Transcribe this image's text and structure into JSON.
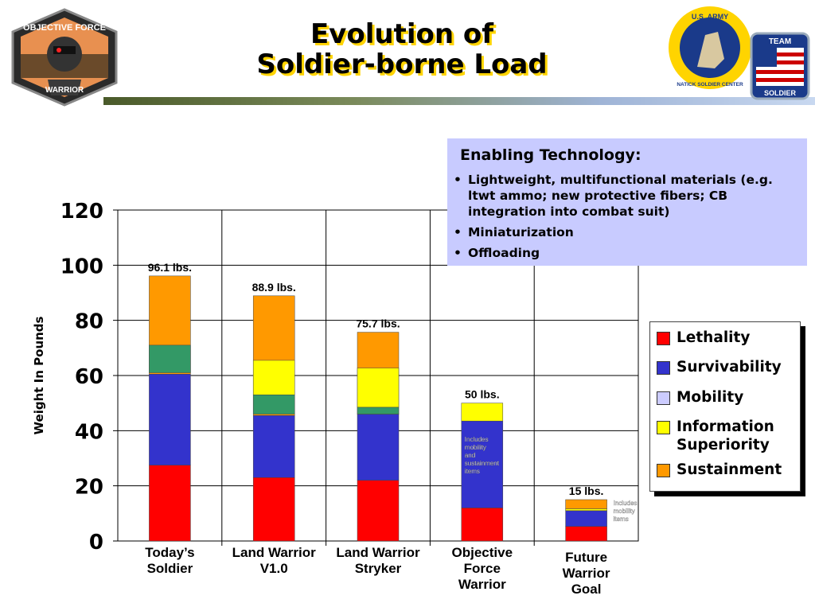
{
  "header": {
    "title_line1": "Evolution of",
    "title_line2": "Soldier-borne Load",
    "logo_left_text": [
      "OBJECTIVE FORCE",
      "WARRIOR"
    ],
    "logo_right1_text": [
      "U.S. ARMY",
      "NATICK SOLDIER CENTER"
    ],
    "logo_right2_text": [
      "TEAM",
      "SOLDIER"
    ]
  },
  "enabling_technology": {
    "heading": "Enabling Technology:",
    "items": [
      "Lightweight, multifunctional materials (e.g. ltwt ammo; new protective fibers; CB integration into combat suit)",
      "Miniaturization",
      "Offloading"
    ]
  },
  "colors": {
    "lethality": "#ff0000",
    "survivability": "#3333cc",
    "mobility": "#ccccff",
    "information_superiority": "#ffff00",
    "sustainment": "#ff9900",
    "tech_box": "#c8cbff",
    "header_gradient_start": "#4a5a2a",
    "header_gradient_end": "#c8d8f0"
  },
  "chart_data": {
    "type": "bar",
    "stacked": true,
    "ylabel": "Weight In Pounds",
    "xlabel": "",
    "ylim": [
      0,
      120
    ],
    "yticks": [
      0,
      20,
      40,
      60,
      80,
      100,
      120
    ],
    "grid": true,
    "legend_position": "right",
    "categories": [
      [
        "Today’s",
        "Soldier"
      ],
      [
        "Land Warrior",
        "V1.0"
      ],
      [
        "Land Warrior",
        "Stryker"
      ],
      [
        "Objective",
        "Force",
        "Warrior"
      ],
      [
        "Future",
        "Warrior",
        "Goal"
      ]
    ],
    "totals": [
      "96.1 lbs.",
      "88.9 lbs.",
      "75.7 lbs.",
      "50 lbs.",
      "15 lbs."
    ],
    "total_values": [
      96.1,
      88.9,
      75.7,
      50,
      15
    ],
    "series": [
      {
        "name": "Lethality",
        "key": "lethality",
        "values": [
          27.5,
          23,
          22,
          12,
          5.3
        ]
      },
      {
        "name": "Survivability",
        "key": "survivability",
        "values": [
          33,
          22.5,
          24,
          31.5,
          5.7
        ]
      },
      {
        "name": "Mobility",
        "key": "mobility",
        "values": [
          0,
          0,
          0,
          0,
          0
        ]
      },
      {
        "name": "Information Superiority",
        "key": "information_superiority",
        "values": [
          0,
          0,
          0,
          6.5,
          0.7
        ]
      },
      {
        "name": "Sustainment",
        "key": "sustainment",
        "values": [
          35.6,
          43.4,
          29.7,
          0,
          3.3
        ]
      }
    ],
    "extra_segments": [
      {
        "category": 0,
        "color_key": "green",
        "color": "#339966",
        "from": 61,
        "to": 71,
        "note": ""
      },
      {
        "category": 1,
        "color_key": "green",
        "color": "#339966",
        "from": 46,
        "to": 53,
        "note": ""
      },
      {
        "category": 1,
        "color_key": "information_superiority",
        "from": 53,
        "to": 65.5,
        "note": ""
      },
      {
        "category": 2,
        "color_key": "green",
        "color": "#339966",
        "from": 46,
        "to": 48.5,
        "note": ""
      },
      {
        "category": 2,
        "color_key": "information_superiority",
        "from": 48.5,
        "to": 62.7,
        "note": ""
      }
    ],
    "annotations": [
      {
        "category": 3,
        "text": [
          "Includes",
          "mobility",
          "and",
          "sustainment",
          "items"
        ]
      },
      {
        "category": 4,
        "text": [
          "Includes",
          "mobility",
          "items"
        ]
      }
    ]
  },
  "legend": {
    "items": [
      {
        "label": "Lethality",
        "key": "lethality"
      },
      {
        "label": "Survivability",
        "key": "survivability"
      },
      {
        "label": "Mobility",
        "key": "mobility"
      },
      {
        "label": "Information Superiority",
        "key": "information_superiority"
      },
      {
        "label": "Sustainment",
        "key": "sustainment"
      }
    ]
  }
}
